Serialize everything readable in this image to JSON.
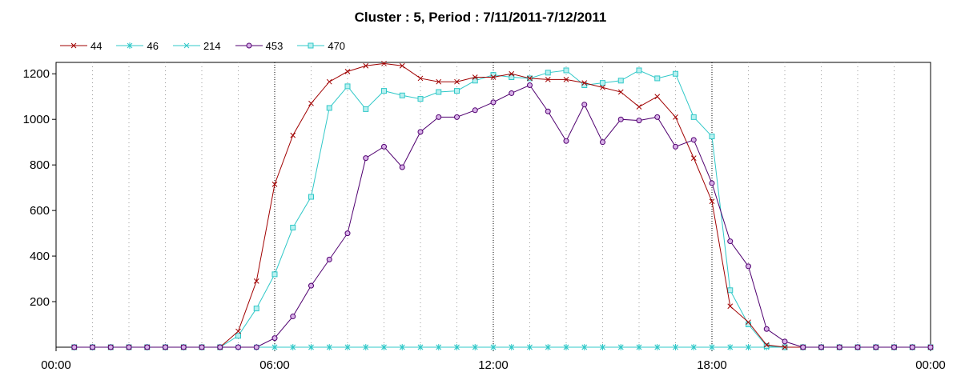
{
  "chart_data": {
    "type": "line",
    "title": "Cluster : 5, Period : 7/11/2011-7/12/2011",
    "xlabel": "",
    "ylabel": "",
    "xlim_hours": [
      0,
      24
    ],
    "ylim": [
      0,
      1250
    ],
    "x_ticks": [
      {
        "label": "00:00",
        "hour": 0
      },
      {
        "label": "06:00",
        "hour": 6
      },
      {
        "label": "12:00",
        "hour": 12
      },
      {
        "label": "18:00",
        "hour": 18
      },
      {
        "label": "00:00",
        "hour": 24
      }
    ],
    "y_ticks": [
      200,
      400,
      600,
      800,
      1000,
      1200
    ],
    "grid": "dotted",
    "legend": "top-left",
    "x_hours": [
      0.5,
      1,
      1.5,
      2,
      2.5,
      3,
      3.5,
      4,
      4.5,
      5,
      5.5,
      6,
      6.5,
      7,
      7.5,
      8,
      8.5,
      9,
      9.5,
      10,
      10.5,
      11,
      11.5,
      12,
      12.5,
      13,
      13.5,
      14,
      14.5,
      15,
      15.5,
      16,
      16.5,
      17,
      17.5,
      18,
      18.5,
      19,
      19.5,
      20,
      20.5,
      21,
      21.5,
      22,
      22.5,
      23,
      23.5,
      24
    ],
    "series": [
      {
        "name": "44",
        "color": "#a00000",
        "marker": "x",
        "values": [
          0,
          0,
          0,
          0,
          0,
          0,
          0,
          0,
          0,
          70,
          290,
          715,
          930,
          1070,
          1165,
          1210,
          1235,
          1245,
          1235,
          1180,
          1165,
          1165,
          1185,
          1185,
          1200,
          1180,
          1175,
          1175,
          1160,
          1140,
          1120,
          1055,
          1100,
          1010,
          830,
          640,
          180,
          110,
          10,
          0,
          0,
          0,
          0,
          0,
          0,
          0,
          0,
          0
        ]
      },
      {
        "name": "46",
        "color": "#30c8c8",
        "marker": "asterisk",
        "values": [
          0,
          0,
          0,
          0,
          0,
          0,
          0,
          0,
          0,
          0,
          0,
          0,
          0,
          0,
          0,
          0,
          0,
          0,
          0,
          0,
          0,
          0,
          0,
          0,
          0,
          0,
          0,
          0,
          0,
          0,
          0,
          0,
          0,
          0,
          0,
          0,
          0,
          0,
          0,
          0,
          0,
          0,
          0,
          0,
          0,
          0,
          0,
          0
        ]
      },
      {
        "name": "214",
        "color": "#30c8c8",
        "marker": "x",
        "values": [
          0,
          0,
          0,
          0,
          0,
          0,
          0,
          0,
          0,
          0,
          0,
          0,
          0,
          0,
          0,
          0,
          0,
          0,
          0,
          0,
          0,
          0,
          0,
          0,
          0,
          0,
          0,
          0,
          0,
          0,
          0,
          0,
          0,
          0,
          0,
          0,
          0,
          0,
          0,
          0,
          0,
          0,
          0,
          0,
          0,
          0,
          0,
          0
        ]
      },
      {
        "name": "453",
        "color": "#500070",
        "marker": "circle",
        "values": [
          0,
          0,
          0,
          0,
          0,
          0,
          0,
          0,
          0,
          0,
          0,
          40,
          135,
          270,
          385,
          500,
          830,
          880,
          790,
          945,
          1010,
          1010,
          1040,
          1075,
          1115,
          1150,
          1035,
          905,
          1065,
          900,
          1000,
          995,
          1010,
          880,
          910,
          720,
          465,
          355,
          80,
          25,
          0,
          0,
          0,
          0,
          0,
          0,
          0,
          0
        ]
      },
      {
        "name": "470",
        "color": "#30c8c8",
        "marker": "square",
        "values": [
          0,
          0,
          0,
          0,
          0,
          0,
          0,
          0,
          0,
          50,
          170,
          320,
          525,
          660,
          1050,
          1145,
          1045,
          1125,
          1105,
          1090,
          1120,
          1125,
          1170,
          1195,
          1185,
          1180,
          1205,
          1215,
          1150,
          1160,
          1170,
          1215,
          1180,
          1200,
          1010,
          925,
          250,
          100,
          5,
          0,
          0,
          0,
          0,
          0,
          0,
          0,
          0,
          0
        ]
      }
    ]
  }
}
